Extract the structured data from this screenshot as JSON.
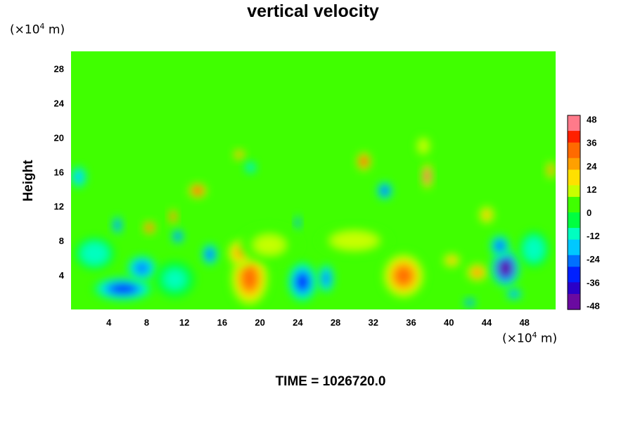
{
  "chart_data": {
    "type": "heatmap",
    "title": "vertical velocity",
    "ylabel": "Height",
    "yunit_prefix": "(×10",
    "yunit_exp": "4",
    "yunit_suffix": " m)",
    "xunit_prefix": "(×10",
    "xunit_exp": "4",
    "xunit_suffix": " m)",
    "xlim": [
      0,
      51.3
    ],
    "ylim": [
      0,
      30
    ],
    "xticks": [
      4,
      8,
      12,
      16,
      20,
      24,
      28,
      32,
      36,
      40,
      44,
      48
    ],
    "yticks": [
      4,
      8,
      12,
      16,
      20,
      24,
      28
    ],
    "colorbar": {
      "range": [
        -50,
        50
      ],
      "ticks": [
        48,
        36,
        24,
        12,
        0,
        -12,
        -24,
        -36,
        -48
      ],
      "colors": [
        "#6a0aa0",
        "#2a00c8",
        "#0020ff",
        "#0070ff",
        "#00c8ff",
        "#00ffc0",
        "#00ff40",
        "#40ff00",
        "#c8ff00",
        "#ffe000",
        "#ffa000",
        "#ff6a00",
        "#ff2000",
        "#ff7a8a"
      ]
    },
    "background_value": 0,
    "features": [
      {
        "x": 18.9,
        "y": 3.6,
        "value": 30,
        "rx": 2.0,
        "ry": 3.2
      },
      {
        "x": 17.9,
        "y": 6.6,
        "value": 24,
        "rx": 1.3,
        "ry": 1.5
      },
      {
        "x": 35.2,
        "y": 3.9,
        "value": 32,
        "rx": 2.2,
        "ry": 2.6
      },
      {
        "x": 43.0,
        "y": 4.3,
        "value": 28,
        "rx": 1.1,
        "ry": 1.0
      },
      {
        "x": 40.3,
        "y": 5.7,
        "value": 22,
        "rx": 0.9,
        "ry": 0.8
      },
      {
        "x": 46.0,
        "y": 4.8,
        "value": -46,
        "rx": 1.4,
        "ry": 2.0
      },
      {
        "x": 45.4,
        "y": 7.4,
        "value": -28,
        "rx": 1.0,
        "ry": 1.2
      },
      {
        "x": 5.5,
        "y": 2.4,
        "value": -34,
        "rx": 3.0,
        "ry": 1.3
      },
      {
        "x": 7.5,
        "y": 4.8,
        "value": -26,
        "rx": 1.5,
        "ry": 1.4
      },
      {
        "x": 24.5,
        "y": 3.2,
        "value": -33,
        "rx": 1.5,
        "ry": 2.2
      },
      {
        "x": 27.0,
        "y": 3.6,
        "value": -26,
        "rx": 0.8,
        "ry": 1.6
      },
      {
        "x": 14.7,
        "y": 6.4,
        "value": -28,
        "rx": 0.8,
        "ry": 1.2
      },
      {
        "x": 11.3,
        "y": 8.5,
        "value": -34,
        "rx": 0.6,
        "ry": 0.8
      },
      {
        "x": 10.8,
        "y": 10.8,
        "value": 42,
        "rx": 0.4,
        "ry": 0.8
      },
      {
        "x": 8.3,
        "y": 9.5,
        "value": 36,
        "rx": 0.6,
        "ry": 0.7
      },
      {
        "x": 13.4,
        "y": 13.8,
        "value": 38,
        "rx": 0.9,
        "ry": 0.8
      },
      {
        "x": 31.0,
        "y": 17.2,
        "value": 40,
        "rx": 0.7,
        "ry": 1.0
      },
      {
        "x": 37.7,
        "y": 15.5,
        "value": 46,
        "rx": 0.5,
        "ry": 1.4
      },
      {
        "x": 33.2,
        "y": 13.8,
        "value": -32,
        "rx": 0.8,
        "ry": 1.0
      },
      {
        "x": 17.8,
        "y": 18.0,
        "value": 30,
        "rx": 0.6,
        "ry": 0.6
      },
      {
        "x": 4.9,
        "y": 9.8,
        "value": -28,
        "rx": 0.5,
        "ry": 1.0
      },
      {
        "x": 19.0,
        "y": 16.5,
        "value": -16,
        "rx": 0.6,
        "ry": 0.7
      },
      {
        "x": 37.3,
        "y": 19.0,
        "value": 14,
        "rx": 0.8,
        "ry": 1.2
      },
      {
        "x": 50.8,
        "y": 16.2,
        "value": 30,
        "rx": 0.5,
        "ry": 1.0
      },
      {
        "x": 42.2,
        "y": 0.8,
        "value": -30,
        "rx": 0.6,
        "ry": 0.5
      },
      {
        "x": 46.9,
        "y": 1.8,
        "value": -24,
        "rx": 0.8,
        "ry": 0.6
      },
      {
        "x": 0.8,
        "y": 15.4,
        "value": -20,
        "rx": 0.8,
        "ry": 1.2
      },
      {
        "x": 24.0,
        "y": 10.1,
        "value": -30,
        "rx": 0.3,
        "ry": 0.8
      },
      {
        "x": 44.0,
        "y": 11.0,
        "value": 22,
        "rx": 0.8,
        "ry": 1.0
      },
      {
        "x": 30.0,
        "y": 8.0,
        "value": 14,
        "rx": 3.5,
        "ry": 1.5
      },
      {
        "x": 21.0,
        "y": 7.5,
        "value": 10,
        "rx": 3.0,
        "ry": 2.0
      },
      {
        "x": 2.5,
        "y": 6.5,
        "value": -14,
        "rx": 2.0,
        "ry": 1.8
      },
      {
        "x": 11.0,
        "y": 3.5,
        "value": -10,
        "rx": 2.0,
        "ry": 2.0
      },
      {
        "x": 49.0,
        "y": 7.0,
        "value": -12,
        "rx": 1.5,
        "ry": 2.0
      }
    ]
  },
  "footer": {
    "time_label": "TIME = ",
    "time_value": "1026720.0"
  }
}
